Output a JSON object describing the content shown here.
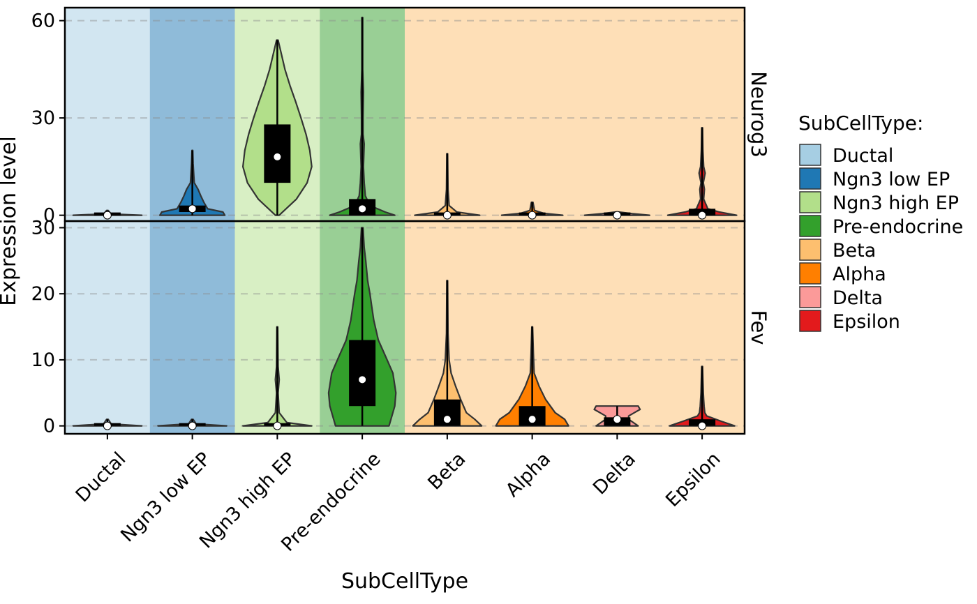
{
  "chart_data": {
    "type": "violin",
    "xlabel": "SubCellType",
    "ylabel": "Expression level",
    "categories": [
      "Ductal",
      "Ngn3 low EP",
      "Ngn3 high EP",
      "Pre-endocrine",
      "Beta",
      "Alpha",
      "Delta",
      "Epsilon"
    ],
    "colors": {
      "Ductal": "#A6CEE3",
      "Ngn3 low EP": "#1F78B4",
      "Ngn3 high EP": "#B2DF8A",
      "Pre-endocrine": "#33A02C",
      "Beta": "#FDBF6F",
      "Alpha": "#FF7F00",
      "Delta": "#FB9A99",
      "Epsilon": "#E31A1C"
    },
    "background_groups": [
      {
        "categories": [
          "Ductal"
        ],
        "color": "#A6CEE3",
        "opacity": 0.5
      },
      {
        "categories": [
          "Ngn3 low EP"
        ],
        "color": "#1F78B4",
        "opacity": 0.5
      },
      {
        "categories": [
          "Ngn3 high EP"
        ],
        "color": "#B2DF8A",
        "opacity": 0.5
      },
      {
        "categories": [
          "Pre-endocrine"
        ],
        "color": "#33A02C",
        "opacity": 0.5
      },
      {
        "categories": [
          "Beta",
          "Alpha",
          "Delta",
          "Epsilon"
        ],
        "color": "#FDBF6F",
        "opacity": 0.5
      }
    ],
    "grid": "horizontal dashed",
    "legend": {
      "title": "SubCellType:",
      "position": "right",
      "items": [
        "Ductal",
        "Ngn3 low EP",
        "Ngn3 high EP",
        "Pre-endocrine",
        "Beta",
        "Alpha",
        "Delta",
        "Epsilon"
      ]
    },
    "facets": [
      {
        "label": "Neurog3",
        "ylim": [
          -1.8,
          64
        ],
        "yticks": [
          0,
          30,
          60
        ],
        "violins": [
          {
            "category": "Ductal",
            "max": 1.5,
            "median": 0,
            "q1": 0,
            "q3": 0.2,
            "profile": [
              [
                0,
                0.9
              ],
              [
                0.4,
                0.1
              ],
              [
                1.5,
                0.02
              ]
            ]
          },
          {
            "category": "Ngn3 low EP",
            "max": 20,
            "median": 2,
            "q1": 1,
            "q3": 3,
            "profile": [
              [
                0,
                0.85
              ],
              [
                1,
                0.8
              ],
              [
                2,
                0.4
              ],
              [
                4,
                0.3
              ],
              [
                6,
                0.22
              ],
              [
                8,
                0.15
              ],
              [
                10,
                0.05
              ],
              [
                12,
                0.04
              ],
              [
                16,
                0.02
              ],
              [
                20,
                0.01
              ]
            ]
          },
          {
            "category": "Ngn3 high EP",
            "max": 54,
            "median": 18,
            "q1": 10,
            "q3": 28,
            "profile": [
              [
                0,
                0.05
              ],
              [
                5,
                0.5
              ],
              [
                10,
                0.78
              ],
              [
                15,
                0.9
              ],
              [
                20,
                0.85
              ],
              [
                25,
                0.75
              ],
              [
                30,
                0.62
              ],
              [
                35,
                0.48
              ],
              [
                40,
                0.33
              ],
              [
                45,
                0.2
              ],
              [
                50,
                0.1
              ],
              [
                54,
                0.02
              ]
            ]
          },
          {
            "category": "Pre-endocrine",
            "max": 61,
            "median": 2,
            "q1": 0,
            "q3": 5,
            "profile": [
              [
                0,
                0.85
              ],
              [
                1,
                0.6
              ],
              [
                3,
                0.2
              ],
              [
                6,
                0.08
              ],
              [
                10,
                0.05
              ],
              [
                15,
                0.03
              ],
              [
                22,
                0.05
              ],
              [
                25,
                0.02
              ],
              [
                30,
                0.02
              ],
              [
                38,
                0.03
              ],
              [
                45,
                0.01
              ],
              [
                61,
                0.01
              ]
            ]
          },
          {
            "category": "Beta",
            "max": 19,
            "median": 0,
            "q1": 0,
            "q3": 0.5,
            "profile": [
              [
                0,
                0.85
              ],
              [
                1,
                0.25
              ],
              [
                3,
                0.05
              ],
              [
                8,
                0.02
              ],
              [
                19,
                0.01
              ]
            ]
          },
          {
            "category": "Alpha",
            "max": 4,
            "median": 0,
            "q1": 0,
            "q3": 0.5,
            "profile": [
              [
                0,
                0.8
              ],
              [
                0.6,
                0.3
              ],
              [
                1.5,
                0.06
              ],
              [
                4,
                0.02
              ]
            ]
          },
          {
            "category": "Delta",
            "max": 1,
            "median": 0,
            "q1": 0,
            "q3": 0.5,
            "profile": [
              [
                0,
                0.85
              ],
              [
                0.5,
                0.4
              ],
              [
                1,
                0.05
              ]
            ]
          },
          {
            "category": "Epsilon",
            "max": 27,
            "median": 0,
            "q1": 0,
            "q3": 2,
            "profile": [
              [
                0,
                0.9
              ],
              [
                1,
                0.45
              ],
              [
                2,
                0.15
              ],
              [
                5,
                0.04
              ],
              [
                8,
                0.06
              ],
              [
                10,
                0.03
              ],
              [
                13,
                0.08
              ],
              [
                15,
                0.04
              ],
              [
                20,
                0.02
              ],
              [
                27,
                0.01
              ]
            ]
          }
        ]
      },
      {
        "label": "Fev",
        "ylim": [
          -1.2,
          31
        ],
        "yticks": [
          0,
          10,
          20,
          30
        ],
        "violins": [
          {
            "category": "Ductal",
            "max": 1,
            "median": 0,
            "q1": 0,
            "q3": 0.2,
            "profile": [
              [
                0,
                0.9
              ],
              [
                0.3,
                0.1
              ],
              [
                1,
                0.02
              ]
            ]
          },
          {
            "category": "Ngn3 low EP",
            "max": 1,
            "median": 0,
            "q1": 0,
            "q3": 0.2,
            "profile": [
              [
                0,
                0.9
              ],
              [
                0.3,
                0.1
              ],
              [
                1,
                0.02
              ]
            ]
          },
          {
            "category": "Ngn3 high EP",
            "max": 15,
            "median": 0,
            "q1": 0,
            "q3": 0.3,
            "profile": [
              [
                0,
                0.9
              ],
              [
                0.5,
                0.25
              ],
              [
                2,
                0.05
              ],
              [
                5,
                0.02
              ],
              [
                7,
                0.05
              ],
              [
                9,
                0.02
              ],
              [
                15,
                0.01
              ]
            ]
          },
          {
            "category": "Pre-endocrine",
            "max": 30,
            "median": 7,
            "q1": 3,
            "q3": 13,
            "profile": [
              [
                0,
                0.7
              ],
              [
                3,
                0.85
              ],
              [
                5,
                0.88
              ],
              [
                8,
                0.8
              ],
              [
                10,
                0.65
              ],
              [
                13,
                0.42
              ],
              [
                16,
                0.3
              ],
              [
                18,
                0.25
              ],
              [
                20,
                0.2
              ],
              [
                22,
                0.14
              ],
              [
                25,
                0.09
              ],
              [
                27,
                0.05
              ],
              [
                30,
                0.02
              ]
            ]
          },
          {
            "category": "Beta",
            "max": 22,
            "median": 1,
            "q1": 0,
            "q3": 4,
            "profile": [
              [
                0,
                0.9
              ],
              [
                1,
                0.72
              ],
              [
                2,
                0.5
              ],
              [
                4,
                0.35
              ],
              [
                6,
                0.22
              ],
              [
                8,
                0.1
              ],
              [
                10,
                0.05
              ],
              [
                14,
                0.02
              ],
              [
                22,
                0.01
              ]
            ]
          },
          {
            "category": "Alpha",
            "max": 15,
            "median": 1,
            "q1": 0,
            "q3": 3,
            "profile": [
              [
                0,
                0.95
              ],
              [
                1,
                0.85
              ],
              [
                2,
                0.6
              ],
              [
                4,
                0.35
              ],
              [
                6,
                0.18
              ],
              [
                8,
                0.05
              ],
              [
                11,
                0.03
              ],
              [
                15,
                0.01
              ]
            ]
          },
          {
            "category": "Delta",
            "max": 3,
            "median": 1,
            "q1": 0,
            "q3": 1.3,
            "profile": [
              [
                0,
                0.55
              ],
              [
                1,
                0.3
              ],
              [
                1.5,
                0.3
              ],
              [
                2,
                0.45
              ],
              [
                2.5,
                0.6
              ],
              [
                3,
                0.55
              ]
            ]
          },
          {
            "category": "Epsilon",
            "max": 9,
            "median": 0,
            "q1": 0,
            "q3": 1,
            "profile": [
              [
                0,
                0.85
              ],
              [
                0.7,
                0.5
              ],
              [
                1.5,
                0.12
              ],
              [
                2,
                0.07
              ],
              [
                3,
                0.05
              ],
              [
                4,
                0.04
              ],
              [
                5,
                0.03
              ],
              [
                7,
                0.02
              ],
              [
                9,
                0.01
              ]
            ]
          }
        ]
      }
    ]
  }
}
